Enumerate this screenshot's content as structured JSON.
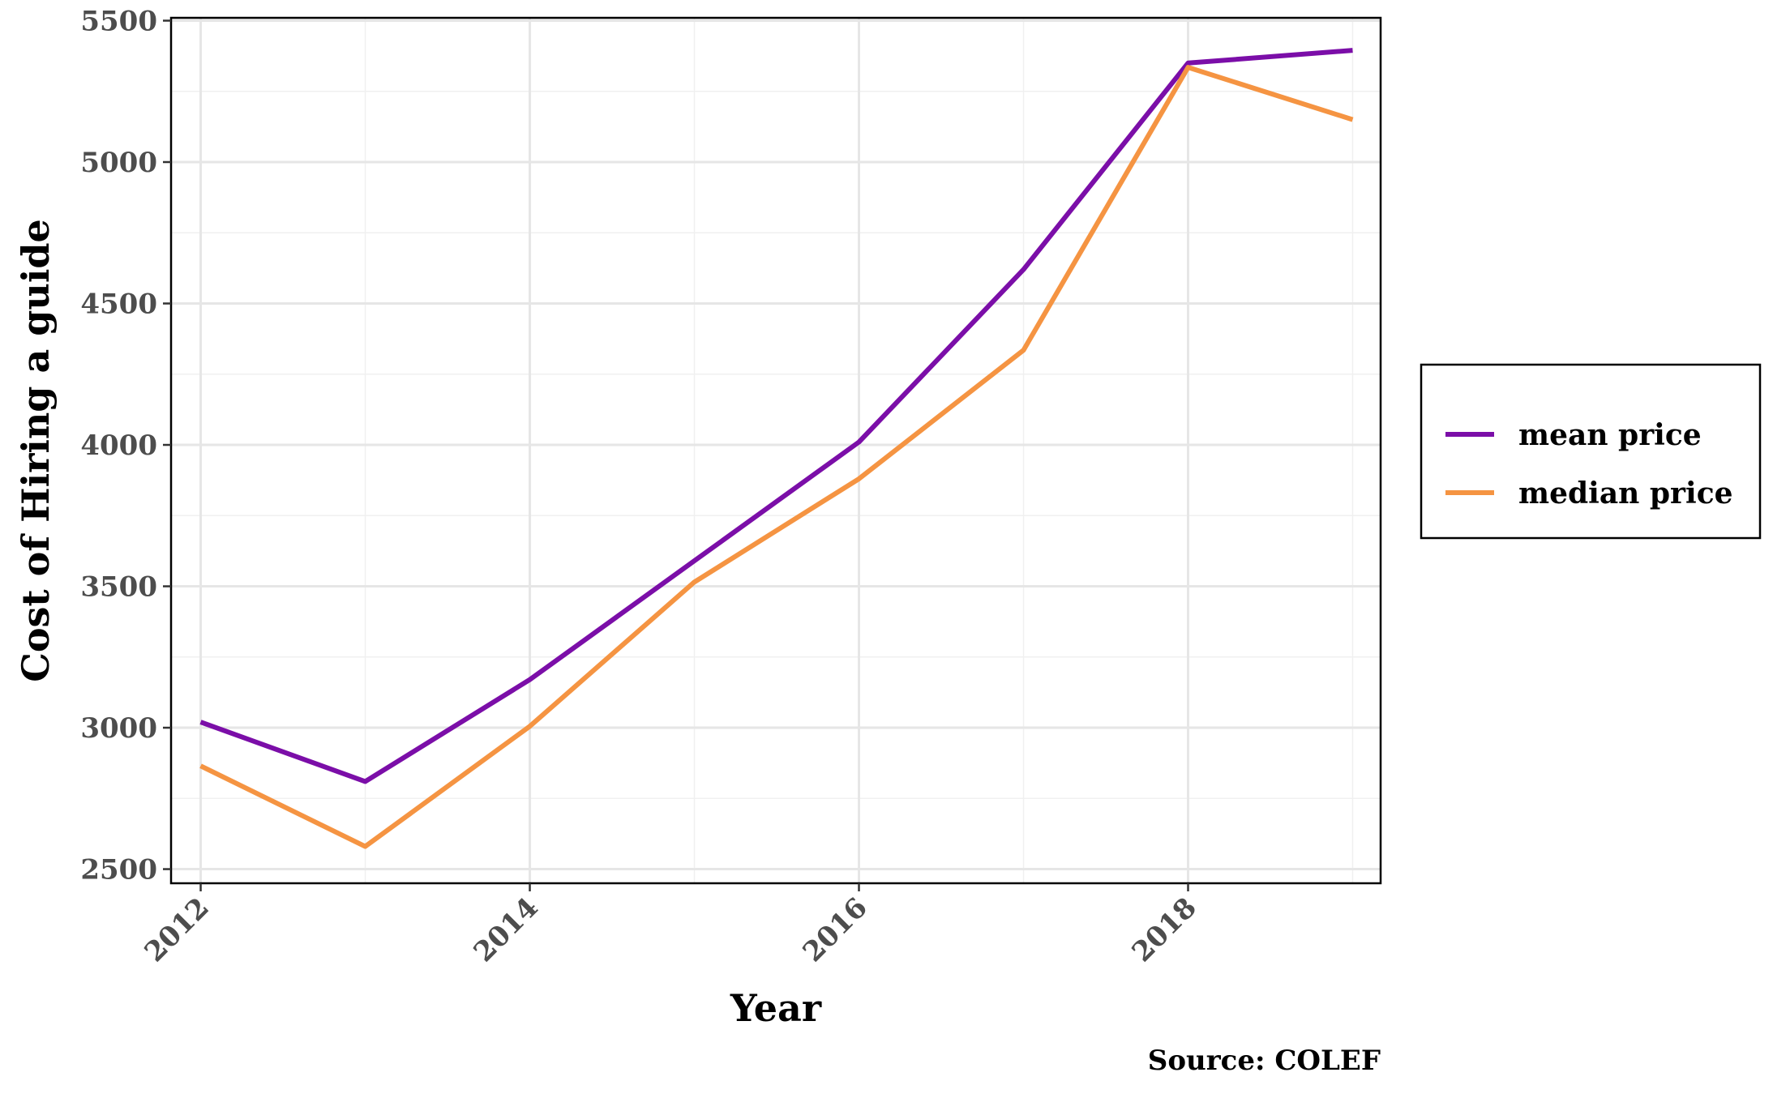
{
  "chart_data": {
    "type": "line",
    "title": "",
    "xlabel": "Year",
    "ylabel": "Cost of Hiring a guide",
    "caption": "Source: COLEF",
    "x": [
      2012,
      2013,
      2014,
      2015,
      2016,
      2017,
      2018,
      2019
    ],
    "xticks": [
      "2012",
      "2014",
      "2016",
      "2018"
    ],
    "yticks": [
      "2500",
      "3000",
      "3500",
      "4000",
      "4500",
      "5000",
      "5500"
    ],
    "xlim": [
      2011.82,
      2019.17
    ],
    "ylim": [
      2450,
      5510
    ],
    "grid": true,
    "legend_position": "right",
    "series": [
      {
        "name": "mean price",
        "color": "#7b0ea8",
        "values": [
          3020,
          2810,
          3170,
          3590,
          4010,
          4620,
          5350,
          5395
        ]
      },
      {
        "name": "median price",
        "color": "#f59442",
        "values": [
          2865,
          2580,
          3005,
          3515,
          3880,
          4335,
          5335,
          5150
        ]
      }
    ]
  }
}
